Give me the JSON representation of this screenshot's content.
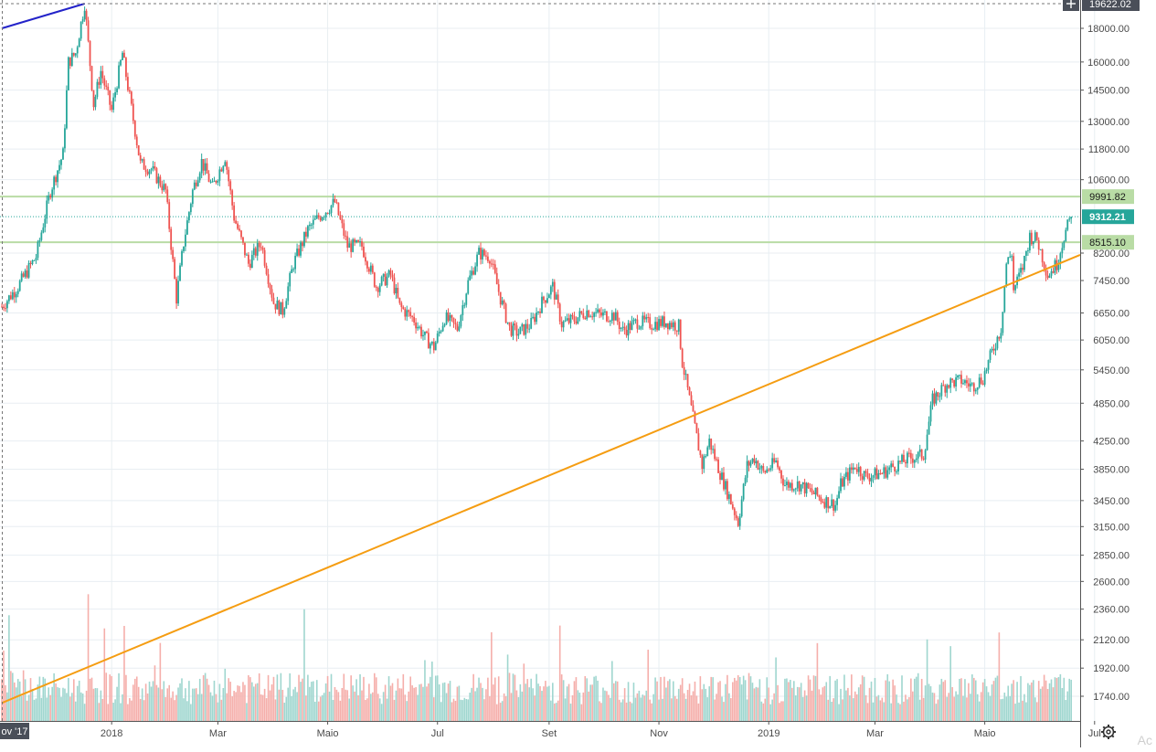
{
  "chart_data": {
    "type": "candlestick",
    "price_axis": {
      "scale": "log",
      "ylim": [
        1600,
        19700
      ],
      "tick_labels": [
        "18000.00",
        "16000.00",
        "14500.00",
        "13000.00",
        "11800.00",
        "10600.00",
        "8200.00",
        "7450.00",
        "6650.00",
        "6050.00",
        "5450.00",
        "4850.00",
        "4250.00",
        "3850.00",
        "3450.00",
        "3150.00",
        "2850.00",
        "2600.00",
        "2360.00",
        "2120.00",
        "1920.00",
        "1740.00"
      ],
      "grid": true
    },
    "time_axis": {
      "first_date": "2017-11-01",
      "last_date": "2019-06-18",
      "tick_labels": [
        "2018",
        "Mar",
        "Maio",
        "Jul",
        "Set",
        "Nov",
        "2019",
        "Mar",
        "Maio",
        "Jul"
      ],
      "tick_dates": [
        "2018-01-01",
        "2018-03-01",
        "2018-05-01",
        "2018-07-01",
        "2018-09-01",
        "2018-11-01",
        "2019-01-01",
        "2019-03-01",
        "2019-05-01",
        "2019-07-01"
      ],
      "crosshair_label": "ov '17"
    },
    "price_path": [
      [
        "2017-11-01",
        6800
      ],
      [
        "2017-11-10",
        7300
      ],
      [
        "2017-11-20",
        8100
      ],
      [
        "2017-11-28",
        10200
      ],
      [
        "2017-12-05",
        11600
      ],
      [
        "2017-12-08",
        16000
      ],
      [
        "2017-12-12",
        16500
      ],
      [
        "2017-12-17",
        19622
      ],
      [
        "2017-12-22",
        13800
      ],
      [
        "2017-12-26",
        15500
      ],
      [
        "2018-01-01",
        13500
      ],
      [
        "2018-01-07",
        16500
      ],
      [
        "2018-01-12",
        13600
      ],
      [
        "2018-01-17",
        11200
      ],
      [
        "2018-01-23",
        11000
      ],
      [
        "2018-01-31",
        10200
      ],
      [
        "2018-02-06",
        7000
      ],
      [
        "2018-02-10",
        8500
      ],
      [
        "2018-02-15",
        10200
      ],
      [
        "2018-02-20",
        11300
      ],
      [
        "2018-02-26",
        10300
      ],
      [
        "2018-03-05",
        11500
      ],
      [
        "2018-03-10",
        9300
      ],
      [
        "2018-03-18",
        7900
      ],
      [
        "2018-03-25",
        8500
      ],
      [
        "2018-04-01",
        6900
      ],
      [
        "2018-04-06",
        6700
      ],
      [
        "2018-04-12",
        7900
      ],
      [
        "2018-04-20",
        8900
      ],
      [
        "2018-04-26",
        9300
      ],
      [
        "2018-05-05",
        9800
      ],
      [
        "2018-05-12",
        8400
      ],
      [
        "2018-05-20",
        8400
      ],
      [
        "2018-05-28",
        7300
      ],
      [
        "2018-06-05",
        7600
      ],
      [
        "2018-06-10",
        6800
      ],
      [
        "2018-06-18",
        6500
      ],
      [
        "2018-06-24",
        6100
      ],
      [
        "2018-06-29",
        5900
      ],
      [
        "2018-07-05",
        6550
      ],
      [
        "2018-07-12",
        6300
      ],
      [
        "2018-07-18",
        7400
      ],
      [
        "2018-07-24",
        8200
      ],
      [
        "2018-07-30",
        8100
      ],
      [
        "2018-08-05",
        7000
      ],
      [
        "2018-08-10",
        6300
      ],
      [
        "2018-08-15",
        6200
      ],
      [
        "2018-08-22",
        6400
      ],
      [
        "2018-08-28",
        6900
      ],
      [
        "2018-09-03",
        7300
      ],
      [
        "2018-09-08",
        6400
      ],
      [
        "2018-09-15",
        6500
      ],
      [
        "2018-09-22",
        6700
      ],
      [
        "2018-09-30",
        6600
      ],
      [
        "2018-10-07",
        6600
      ],
      [
        "2018-10-12",
        6250
      ],
      [
        "2018-10-20",
        6450
      ],
      [
        "2018-10-28",
        6400
      ],
      [
        "2018-11-05",
        6450
      ],
      [
        "2018-11-12",
        6350
      ],
      [
        "2018-11-14",
        5600
      ],
      [
        "2018-11-20",
        4600
      ],
      [
        "2018-11-25",
        3900
      ],
      [
        "2018-11-29",
        4250
      ],
      [
        "2018-12-05",
        3800
      ],
      [
        "2018-12-10",
        3500
      ],
      [
        "2018-12-15",
        3200
      ],
      [
        "2018-12-20",
        3900
      ],
      [
        "2018-12-24",
        4000
      ],
      [
        "2018-12-29",
        3800
      ],
      [
        "2019-01-05",
        3950
      ],
      [
        "2019-01-10",
        3650
      ],
      [
        "2019-01-18",
        3650
      ],
      [
        "2019-01-25",
        3550
      ],
      [
        "2019-02-01",
        3450
      ],
      [
        "2019-02-07",
        3400
      ],
      [
        "2019-02-10",
        3650
      ],
      [
        "2019-02-18",
        3900
      ],
      [
        "2019-02-24",
        3750
      ],
      [
        "2019-03-05",
        3800
      ],
      [
        "2019-03-12",
        3900
      ],
      [
        "2019-03-20",
        4000
      ],
      [
        "2019-03-28",
        4050
      ],
      [
        "2019-04-02",
        4900
      ],
      [
        "2019-04-10",
        5200
      ],
      [
        "2019-04-18",
        5250
      ],
      [
        "2019-04-24",
        5150
      ],
      [
        "2019-04-30",
        5300
      ],
      [
        "2019-05-05",
        5800
      ],
      [
        "2019-05-10",
        6300
      ],
      [
        "2019-05-13",
        7900
      ],
      [
        "2019-05-16",
        8200
      ],
      [
        "2019-05-17",
        7200
      ],
      [
        "2019-05-22",
        7800
      ],
      [
        "2019-05-26",
        8700
      ],
      [
        "2019-05-30",
        8600
      ],
      [
        "2019-06-05",
        7600
      ],
      [
        "2019-06-10",
        7900
      ],
      [
        "2019-06-14",
        8700
      ],
      [
        "2019-06-18",
        9312.21
      ]
    ],
    "horizontal_lines": [
      {
        "label": "9991.82",
        "value": 9991.82,
        "color": "#b9dca5"
      },
      {
        "label": "8515.10",
        "value": 8515.1,
        "color": "#b9dca5"
      }
    ],
    "current_price": {
      "label": "9312.21",
      "value": 9312.21,
      "color": "#26a69a"
    },
    "high_label": "19622.02",
    "high_value": 19622.02,
    "trendlines": [
      {
        "color": "#f59d12",
        "points": [
          [
            "2017-11-01",
            1700
          ],
          [
            "2019-06-30",
            8300
          ]
        ]
      },
      {
        "color": "#2323c9",
        "points": [
          [
            "2017-11-01",
            18000
          ],
          [
            "2017-12-17",
            19622
          ]
        ]
      }
    ],
    "colors": {
      "up": "#26a69a",
      "down": "#ef5350",
      "vol_up": "#9fd6cf",
      "vol_down": "#f5aeaa",
      "grid": "#e8eef2"
    }
  },
  "corner_text": "Ac",
  "settings_icon": "gear-icon"
}
